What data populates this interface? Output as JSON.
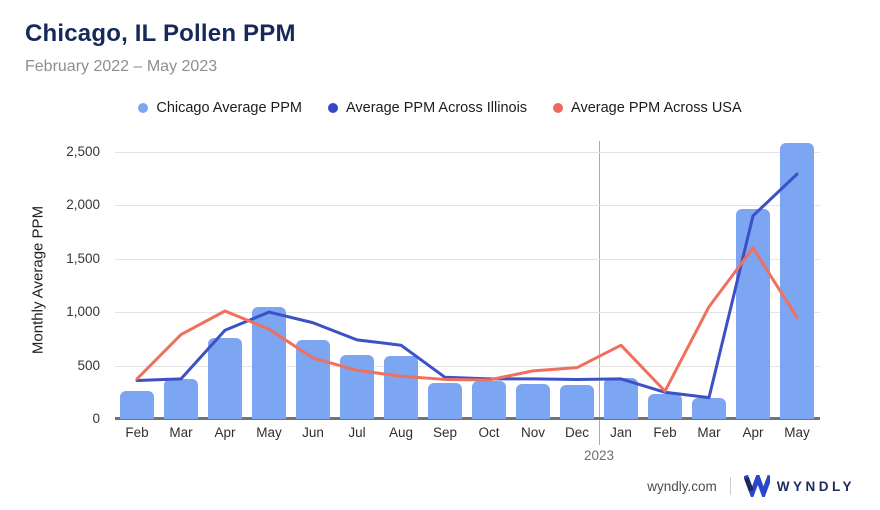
{
  "header": {
    "title": "Chicago, IL Pollen PPM",
    "subtitle": "February 2022 – May 2023"
  },
  "legend": {
    "items": [
      {
        "label": "Chicago Average PPM",
        "color": "#7CA5F2"
      },
      {
        "label": "Average PPM Across Illinois",
        "color": "#3347C8"
      },
      {
        "label": "Average PPM Across USA",
        "color": "#F0685C"
      }
    ]
  },
  "chart_data": {
    "type": "bar",
    "title": "Chicago, IL Pollen PPM",
    "subtitle": "February 2022 – May 2023",
    "xlabel": "",
    "ylabel": "Monthly Average PPM",
    "categories": [
      "Feb",
      "Mar",
      "Apr",
      "May",
      "Jun",
      "Jul",
      "Aug",
      "Sep",
      "Oct",
      "Nov",
      "Dec",
      "Jan",
      "Feb",
      "Mar",
      "Apr",
      "May"
    ],
    "series": [
      {
        "name": "Chicago Average PPM",
        "type": "bar",
        "color": "#7CA5F2",
        "values": [
          260,
          375,
          760,
          1050,
          740,
          600,
          590,
          340,
          360,
          330,
          320,
          380,
          230,
          200,
          1960,
          2580
        ]
      },
      {
        "name": "Average PPM Across Illinois",
        "type": "line",
        "color": "#3C51C5",
        "values": [
          360,
          375,
          830,
          1000,
          900,
          740,
          690,
          390,
          375,
          375,
          370,
          375,
          250,
          200,
          1900,
          2290
        ]
      },
      {
        "name": "Average PPM Across USA",
        "type": "line",
        "color": "#F0705F",
        "values": [
          375,
          790,
          1010,
          840,
          570,
          455,
          400,
          370,
          365,
          450,
          480,
          690,
          260,
          1050,
          1600,
          950
        ]
      }
    ],
    "y_ticks": [
      {
        "value": 0,
        "label": "0"
      },
      {
        "value": 500,
        "label": "500"
      },
      {
        "value": 1000,
        "label": "1,000"
      },
      {
        "value": 1500,
        "label": "1,500"
      },
      {
        "value": 2000,
        "label": "2,000"
      },
      {
        "value": 2500,
        "label": "2,500"
      }
    ],
    "ylim": [
      0,
      2600
    ],
    "grid": true,
    "legend_position": "top",
    "year_divider": {
      "after_index": 10,
      "label": "2023"
    }
  },
  "footer": {
    "site": "wyndly.com",
    "brand": "WYNDLY"
  }
}
